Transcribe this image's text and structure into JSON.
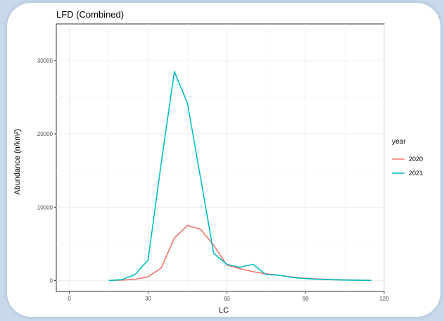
{
  "chart_data": {
    "type": "line",
    "title": "LFD (Combined)",
    "xlabel": "LC",
    "ylabel": "Abundance (n/km²)",
    "xlim": [
      -5,
      120
    ],
    "ylim": [
      -1500,
      35000
    ],
    "x_ticks": [
      0,
      30,
      60,
      90,
      120
    ],
    "y_ticks": [
      0,
      10000,
      20000,
      30000
    ],
    "grid": true,
    "legend": {
      "title": "year",
      "position": "right"
    },
    "series": [
      {
        "name": "2020",
        "color": "#F8766D",
        "x": [
          15,
          20,
          25,
          30,
          35,
          40,
          45,
          50,
          55,
          60,
          65,
          70,
          75,
          80,
          85,
          90,
          95,
          100,
          105,
          110,
          115
        ],
        "y": [
          0,
          50,
          150,
          500,
          1700,
          5800,
          7500,
          7000,
          4800,
          2100,
          1600,
          1200,
          900,
          700,
          450,
          300,
          200,
          120,
          80,
          40,
          20
        ]
      },
      {
        "name": "2021",
        "color": "#00BFC4",
        "x": [
          15,
          20,
          25,
          30,
          35,
          40,
          45,
          50,
          55,
          60,
          65,
          70,
          75,
          80,
          85,
          90,
          95,
          100,
          105,
          110,
          115
        ],
        "y": [
          0,
          100,
          800,
          2800,
          16000,
          28500,
          24200,
          14000,
          3700,
          2200,
          1800,
          2200,
          800,
          700,
          400,
          250,
          150,
          100,
          60,
          30,
          10
        ]
      }
    ]
  }
}
